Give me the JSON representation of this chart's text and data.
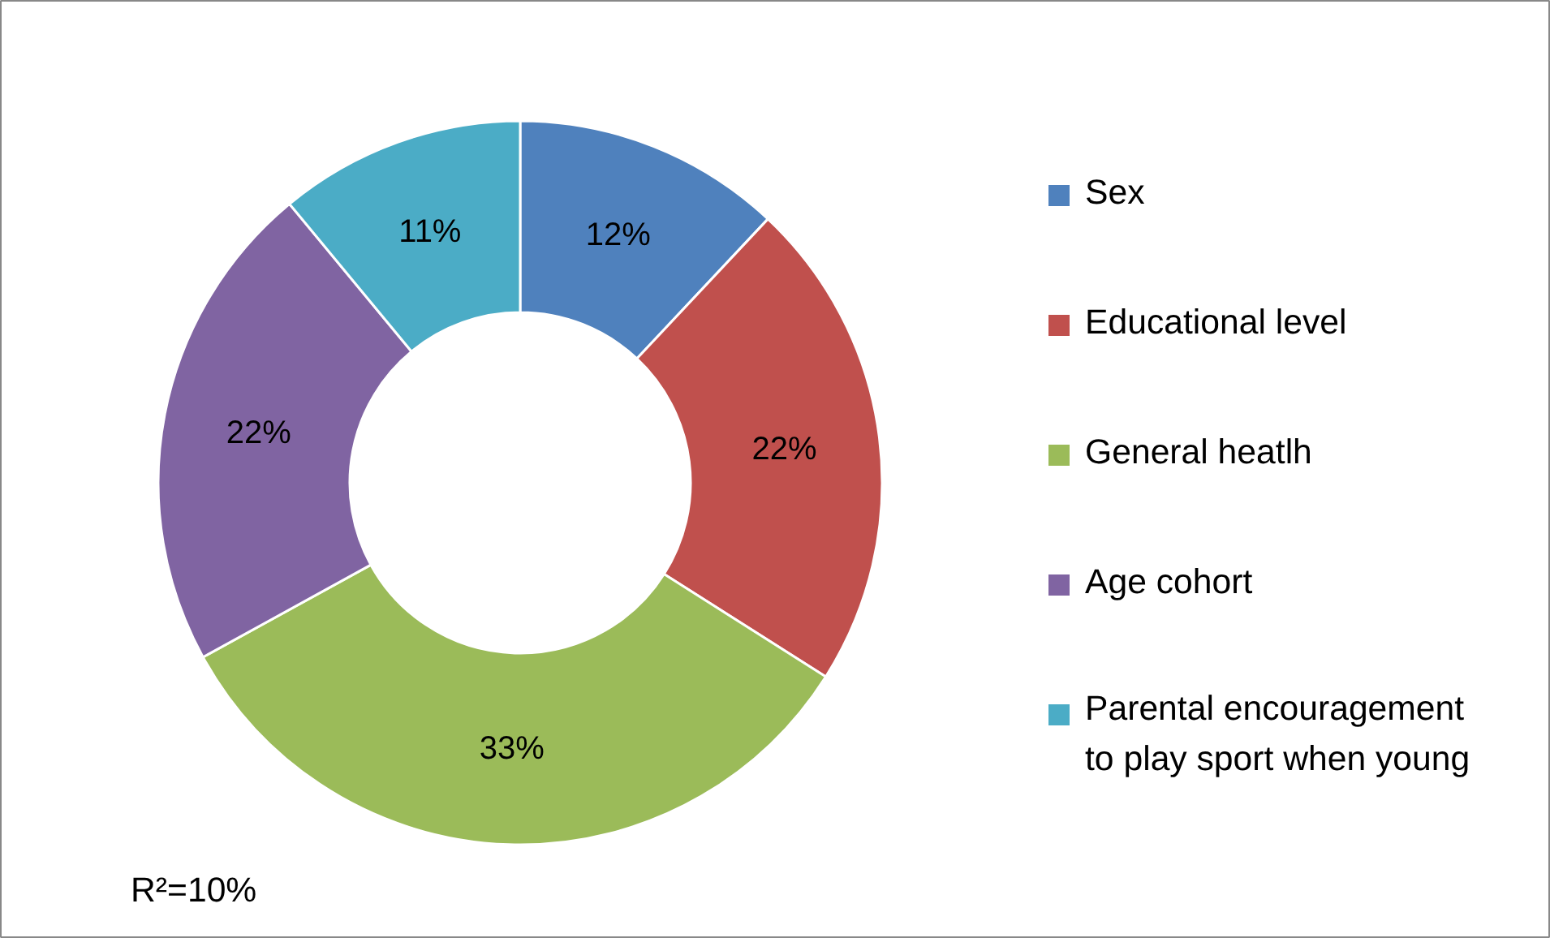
{
  "chart_data": {
    "type": "donut",
    "categories": [
      "Sex",
      "Educational level",
      "General heatlh",
      "Age cohort",
      "Parental encouragement to play sport when young"
    ],
    "values": [
      12,
      22,
      33,
      22,
      11
    ],
    "colors": [
      "#4f81bd",
      "#c0504d",
      "#9bbb59",
      "#8064a2",
      "#4bacc6"
    ],
    "value_labels": [
      "12%",
      "22%",
      "33%",
      "22%",
      "11%"
    ],
    "legend": "right",
    "annotations": [
      "R²=10%"
    ]
  }
}
